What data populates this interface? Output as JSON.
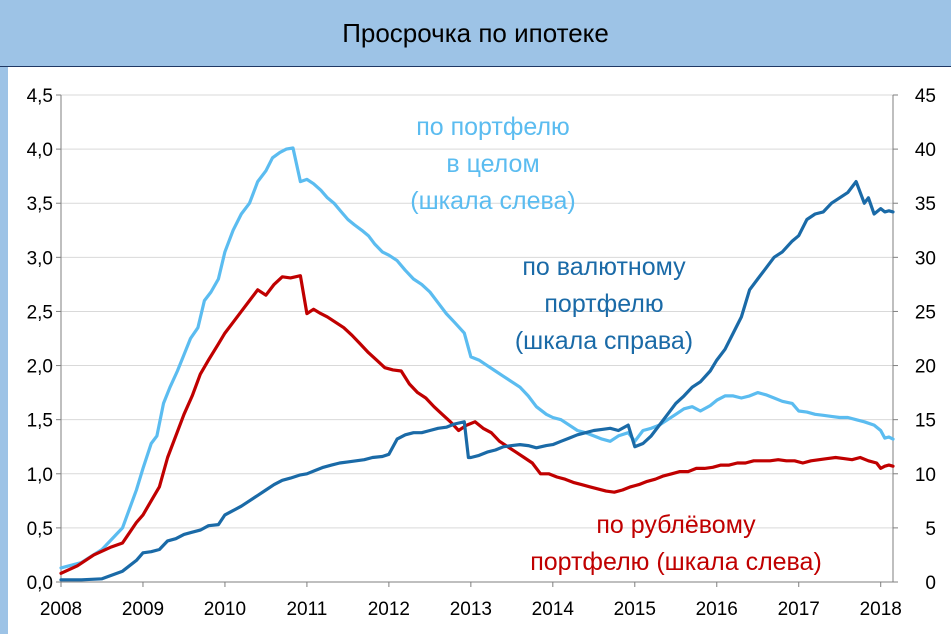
{
  "header": {
    "title": "Просрочка по ипотеке"
  },
  "chart_data": {
    "type": "line",
    "title": "Просрочка по ипотеке",
    "grid": true,
    "x_axis": {
      "range": [
        2008,
        2018.15
      ],
      "ticks": [
        "2008",
        "2009",
        "2010",
        "2011",
        "2012",
        "2013",
        "2014",
        "2015",
        "2016",
        "2017",
        "2018"
      ]
    },
    "y_left": {
      "range": [
        0,
        4.5
      ],
      "ticks": [
        "0,0",
        "0,5",
        "1,0",
        "1,5",
        "2,0",
        "2,5",
        "3,0",
        "3,5",
        "4,0",
        "4,5"
      ]
    },
    "y_right": {
      "range": [
        0,
        45
      ],
      "ticks": [
        "0",
        "5",
        "10",
        "15",
        "20",
        "25",
        "30",
        "35",
        "40",
        "45"
      ]
    },
    "annotations": [
      {
        "id": "a1",
        "lines": [
          "по портфелю",
          "в целом",
          "(шкала слева)"
        ],
        "color": "#5bbcf0"
      },
      {
        "id": "a2",
        "lines": [
          "по валютному",
          "портфелю",
          "(шкала справа)"
        ],
        "color": "#1a6aa7"
      },
      {
        "id": "a3",
        "lines": [
          "по рублёвому",
          "портфелю (шкала слева)"
        ],
        "color": "#c00000"
      }
    ],
    "series": [
      {
        "axis": "left",
        "color": "#5bbcf0",
        "x": [
          2008.0,
          2008.25,
          2008.5,
          2008.75,
          2008.92,
          2009.0,
          2009.1,
          2009.17,
          2009.25,
          2009.33,
          2009.42,
          2009.5,
          2009.58,
          2009.67,
          2009.75,
          2009.83,
          2009.92,
          2010.0,
          2010.1,
          2010.2,
          2010.3,
          2010.4,
          2010.5,
          2010.58,
          2010.67,
          2010.75,
          2010.83,
          2010.92,
          2011.0,
          2011.08,
          2011.17,
          2011.25,
          2011.33,
          2011.42,
          2011.5,
          2011.58,
          2011.67,
          2011.75,
          2011.83,
          2011.92,
          2012.0,
          2012.1,
          2012.2,
          2012.3,
          2012.4,
          2012.5,
          2012.6,
          2012.7,
          2012.8,
          2012.92,
          2013.0,
          2013.1,
          2013.2,
          2013.3,
          2013.4,
          2013.5,
          2013.6,
          2013.7,
          2013.8,
          2013.92,
          2014.0,
          2014.1,
          2014.2,
          2014.3,
          2014.4,
          2014.5,
          2014.6,
          2014.7,
          2014.8,
          2014.92,
          2015.0,
          2015.1,
          2015.2,
          2015.3,
          2015.4,
          2015.5,
          2015.6,
          2015.7,
          2015.8,
          2015.92,
          2016.0,
          2016.1,
          2016.2,
          2016.3,
          2016.4,
          2016.5,
          2016.6,
          2016.7,
          2016.8,
          2016.92,
          2017.0,
          2017.1,
          2017.2,
          2017.3,
          2017.4,
          2017.5,
          2017.6,
          2017.7,
          2017.8,
          2017.92,
          2018.0,
          2018.05,
          2018.1,
          2018.15
        ],
        "y": [
          0.13,
          0.18,
          0.3,
          0.5,
          0.85,
          1.05,
          1.28,
          1.35,
          1.65,
          1.8,
          1.95,
          2.1,
          2.25,
          2.35,
          2.6,
          2.68,
          2.8,
          3.05,
          3.25,
          3.4,
          3.5,
          3.7,
          3.8,
          3.92,
          3.97,
          4.0,
          4.01,
          3.7,
          3.72,
          3.68,
          3.62,
          3.55,
          3.5,
          3.42,
          3.35,
          3.3,
          3.25,
          3.2,
          3.12,
          3.05,
          3.02,
          2.97,
          2.88,
          2.8,
          2.75,
          2.68,
          2.58,
          2.48,
          2.4,
          2.3,
          2.08,
          2.05,
          2.0,
          1.95,
          1.9,
          1.85,
          1.8,
          1.72,
          1.62,
          1.55,
          1.52,
          1.5,
          1.45,
          1.4,
          1.38,
          1.35,
          1.32,
          1.3,
          1.35,
          1.38,
          1.3,
          1.4,
          1.42,
          1.45,
          1.5,
          1.55,
          1.6,
          1.62,
          1.58,
          1.63,
          1.68,
          1.72,
          1.72,
          1.7,
          1.72,
          1.75,
          1.73,
          1.7,
          1.67,
          1.65,
          1.58,
          1.57,
          1.55,
          1.54,
          1.53,
          1.52,
          1.52,
          1.5,
          1.48,
          1.45,
          1.4,
          1.33,
          1.34,
          1.32
        ]
      },
      {
        "axis": "left",
        "color": "#c00000",
        "x": [
          2008.0,
          2008.2,
          2008.4,
          2008.6,
          2008.75,
          2008.92,
          2009.0,
          2009.1,
          2009.2,
          2009.3,
          2009.4,
          2009.5,
          2009.6,
          2009.7,
          2009.8,
          2009.92,
          2010.0,
          2010.1,
          2010.2,
          2010.3,
          2010.4,
          2010.5,
          2010.6,
          2010.7,
          2010.8,
          2010.92,
          2011.0,
          2011.08,
          2011.17,
          2011.25,
          2011.35,
          2011.45,
          2011.55,
          2011.65,
          2011.75,
          2011.85,
          2011.95,
          2012.05,
          2012.15,
          2012.25,
          2012.35,
          2012.45,
          2012.55,
          2012.65,
          2012.75,
          2012.85,
          2012.95,
          2013.05,
          2013.15,
          2013.25,
          2013.35,
          2013.45,
          2013.55,
          2013.65,
          2013.75,
          2013.85,
          2013.95,
          2014.05,
          2014.15,
          2014.25,
          2014.35,
          2014.45,
          2014.55,
          2014.65,
          2014.75,
          2014.85,
          2014.95,
          2015.05,
          2015.15,
          2015.25,
          2015.35,
          2015.45,
          2015.55,
          2015.65,
          2015.75,
          2015.85,
          2015.95,
          2016.05,
          2016.15,
          2016.25,
          2016.35,
          2016.45,
          2016.55,
          2016.65,
          2016.75,
          2016.85,
          2016.95,
          2017.05,
          2017.15,
          2017.25,
          2017.35,
          2017.45,
          2017.55,
          2017.65,
          2017.75,
          2017.85,
          2017.95,
          2018.0,
          2018.05,
          2018.1,
          2018.15
        ],
        "y": [
          0.08,
          0.15,
          0.25,
          0.32,
          0.36,
          0.55,
          0.62,
          0.75,
          0.88,
          1.15,
          1.35,
          1.55,
          1.72,
          1.92,
          2.05,
          2.2,
          2.3,
          2.4,
          2.5,
          2.6,
          2.7,
          2.65,
          2.75,
          2.82,
          2.81,
          2.83,
          2.48,
          2.52,
          2.48,
          2.45,
          2.4,
          2.35,
          2.28,
          2.2,
          2.12,
          2.05,
          1.98,
          1.96,
          1.95,
          1.83,
          1.75,
          1.7,
          1.62,
          1.55,
          1.48,
          1.4,
          1.45,
          1.48,
          1.42,
          1.38,
          1.3,
          1.25,
          1.2,
          1.15,
          1.1,
          1.0,
          1.0,
          0.97,
          0.95,
          0.92,
          0.9,
          0.88,
          0.86,
          0.84,
          0.83,
          0.85,
          0.88,
          0.9,
          0.93,
          0.95,
          0.98,
          1.0,
          1.02,
          1.02,
          1.05,
          1.05,
          1.06,
          1.08,
          1.08,
          1.1,
          1.1,
          1.12,
          1.12,
          1.12,
          1.13,
          1.12,
          1.12,
          1.1,
          1.12,
          1.13,
          1.14,
          1.15,
          1.14,
          1.13,
          1.15,
          1.12,
          1.1,
          1.05,
          1.07,
          1.08,
          1.07
        ]
      },
      {
        "axis": "right",
        "color": "#1a6aa7",
        "x": [
          2008.0,
          2008.25,
          2008.5,
          2008.75,
          2008.92,
          2009.0,
          2009.1,
          2009.2,
          2009.3,
          2009.4,
          2009.5,
          2009.6,
          2009.7,
          2009.8,
          2009.92,
          2010.0,
          2010.1,
          2010.2,
          2010.3,
          2010.4,
          2010.5,
          2010.6,
          2010.7,
          2010.8,
          2010.92,
          2011.0,
          2011.1,
          2011.2,
          2011.3,
          2011.4,
          2011.5,
          2011.6,
          2011.7,
          2011.8,
          2011.92,
          2012.0,
          2012.1,
          2012.2,
          2012.3,
          2012.4,
          2012.5,
          2012.6,
          2012.7,
          2012.8,
          2012.92,
          2012.97,
          2013.0,
          2013.1,
          2013.2,
          2013.3,
          2013.4,
          2013.5,
          2013.6,
          2013.7,
          2013.8,
          2013.92,
          2014.0,
          2014.1,
          2014.2,
          2014.3,
          2014.4,
          2014.5,
          2014.6,
          2014.7,
          2014.8,
          2014.92,
          2015.0,
          2015.1,
          2015.2,
          2015.3,
          2015.4,
          2015.5,
          2015.6,
          2015.7,
          2015.8,
          2015.92,
          2016.0,
          2016.1,
          2016.2,
          2016.3,
          2016.4,
          2016.5,
          2016.6,
          2016.7,
          2016.8,
          2016.92,
          2017.0,
          2017.1,
          2017.2,
          2017.3,
          2017.4,
          2017.5,
          2017.6,
          2017.7,
          2017.8,
          2017.85,
          2017.92,
          2018.0,
          2018.05,
          2018.1,
          2018.15
        ],
        "y": [
          0.2,
          0.2,
          0.3,
          1.0,
          2.0,
          2.7,
          2.8,
          3.0,
          3.8,
          4.0,
          4.4,
          4.6,
          4.8,
          5.2,
          5.3,
          6.2,
          6.6,
          7.0,
          7.5,
          8.0,
          8.5,
          9.0,
          9.4,
          9.6,
          9.9,
          10.0,
          10.3,
          10.6,
          10.8,
          11.0,
          11.1,
          11.2,
          11.3,
          11.5,
          11.6,
          11.8,
          13.2,
          13.6,
          13.8,
          13.8,
          14.0,
          14.2,
          14.3,
          14.6,
          14.8,
          11.5,
          11.5,
          11.7,
          12.0,
          12.2,
          12.5,
          12.6,
          12.7,
          12.6,
          12.4,
          12.6,
          12.7,
          13.0,
          13.3,
          13.6,
          13.8,
          14.0,
          14.1,
          14.2,
          14.0,
          14.5,
          12.5,
          12.8,
          13.5,
          14.5,
          15.5,
          16.5,
          17.2,
          18.0,
          18.5,
          19.5,
          20.5,
          21.5,
          23.0,
          24.5,
          27.0,
          28.0,
          29.0,
          30.0,
          30.5,
          31.5,
          32.0,
          33.5,
          34.0,
          34.2,
          35.0,
          35.5,
          36.0,
          37.0,
          35.0,
          35.5,
          34.0,
          34.5,
          34.2,
          34.3,
          34.2
        ]
      }
    ]
  }
}
